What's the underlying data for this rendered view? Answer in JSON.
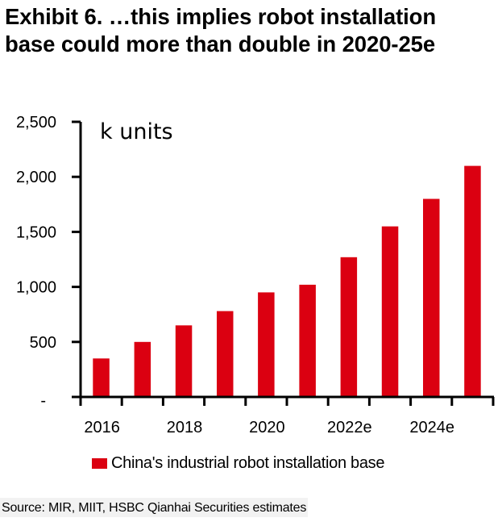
{
  "title": {
    "line1": "Exhibit 6. …this implies robot installation",
    "line2": "base could more than double in 2020-25e"
  },
  "source": "Source: MIR, MIIT, HSBC Qianhai Securities estimates",
  "colors": {
    "bar": "#DB0011",
    "axis": "#000000",
    "source_background": "#F2F2F2"
  },
  "chart_data": {
    "type": "bar",
    "title": "Exhibit 6. …this implies robot installation base could more than double in 2020-25e",
    "unit_annotation": "k units",
    "xlabel": "",
    "ylabel": "",
    "categories": [
      "2016",
      "2017",
      "2018",
      "2019",
      "2020",
      "2021",
      "2022e",
      "2023e",
      "2024e",
      "2025e"
    ],
    "x_tick_labels": [
      "2016",
      "",
      "2018",
      "",
      "2020",
      "",
      "2022e",
      "",
      "2024e",
      ""
    ],
    "series": [
      {
        "name": "China's industrial robot installation base",
        "color": "#DB0011",
        "values": [
          350,
          500,
          650,
          780,
          950,
          1020,
          1270,
          1550,
          1800,
          2100
        ]
      }
    ],
    "ylim": [
      0,
      2500
    ],
    "y_ticks": [
      0,
      500,
      1000,
      1500,
      2000,
      2500
    ],
    "y_tick_labels": [
      "-",
      "500",
      "1,000",
      "1,500",
      "2,000",
      "2,500"
    ],
    "grid": false,
    "legend": {
      "position": "bottom",
      "entries": [
        "China's industrial robot installation base"
      ]
    }
  }
}
